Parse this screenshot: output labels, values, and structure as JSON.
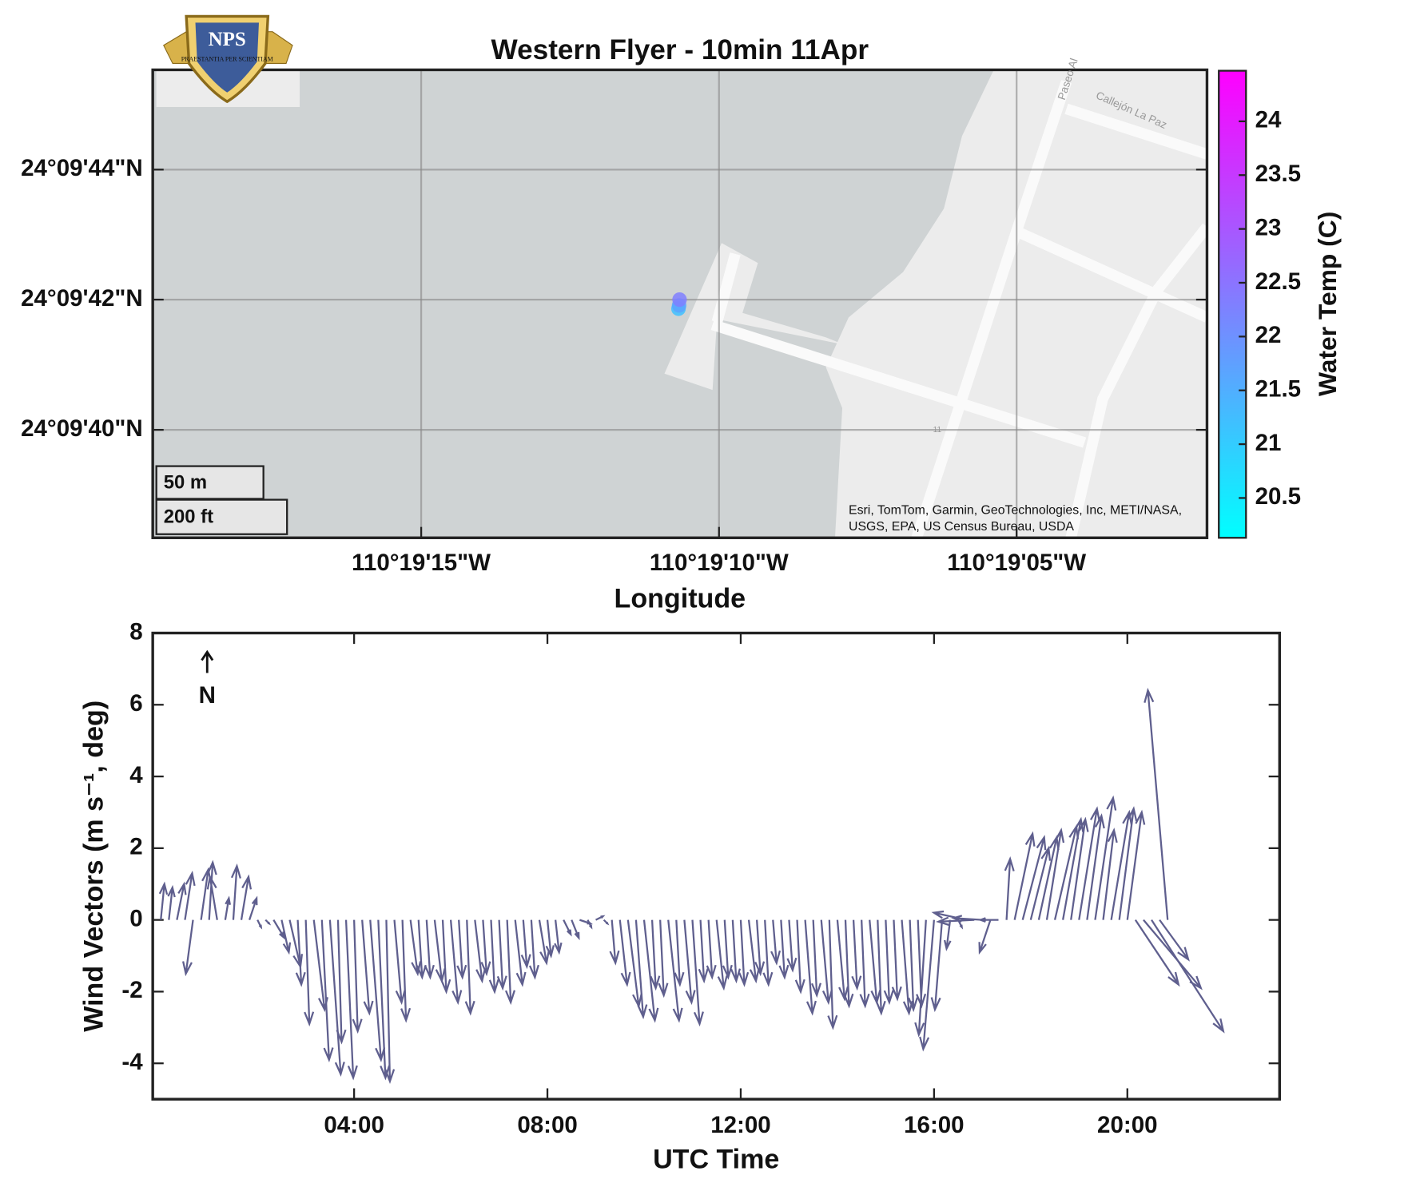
{
  "chart_data": [
    {
      "type": "map",
      "title": "Western Flyer - 10min 11Apr",
      "xlabel": "Longitude",
      "xlim": [
        -110.322085,
        -110.317168
      ],
      "ylim": [
        24.16065,
        24.162648
      ],
      "xticks": [
        {
          "value": -110.320833,
          "label": "110°19'15\"W"
        },
        {
          "value": -110.319444,
          "label": "110°19'10\"W"
        },
        {
          "value": -110.318056,
          "label": "110°19'05\"W"
        }
      ],
      "yticks": [
        {
          "value": 24.161111,
          "label": "24°09'40\"N"
        },
        {
          "value": 24.161667,
          "label": "24°09'42\"N"
        },
        {
          "value": 24.162222,
          "label": "24°09'44\"N"
        }
      ],
      "grid": true,
      "x": [
        -110.319633,
        -110.31963,
        -110.319628
      ],
      "y": [
        24.161628,
        24.161642,
        24.161667
      ],
      "values": [
        21.2,
        21.7,
        22.3
      ],
      "colorbar": {
        "label": "Water Temp (C)",
        "lim": [
          20.13,
          24.47
        ],
        "ticks": [
          20.5,
          21,
          21.5,
          22,
          22.5,
          23,
          23.5,
          24
        ],
        "colors": [
          "#00ffff",
          "#ff00ff"
        ]
      },
      "scale_labels": [
        "50 m",
        "200 ft"
      ],
      "attribution": [
        "Esri, TomTom, Garmin, GeoTechnologies, Inc, METI/NASA,",
        "USGS, EPA, US Census Bureau, USDA"
      ],
      "street_labels": [
        "Paseo Al",
        "Callejón La Paz",
        "11"
      ],
      "logo": {
        "text": "NPS",
        "motto": "PRAESTANTIA PER SCIENTIAM"
      }
    },
    {
      "type": "quiver",
      "xlabel": "UTC Time",
      "ylabel": "Wind Vectors (m s⁻¹, deg)",
      "north_label": "N",
      "color": "#5f5f8e",
      "xlim": [
        -10,
        1389
      ],
      "ylim": [
        -5,
        8
      ],
      "xticks": [
        {
          "value": 240,
          "label": "04:00"
        },
        {
          "value": 480,
          "label": "08:00"
        },
        {
          "value": 720,
          "label": "12:00"
        },
        {
          "value": 960,
          "label": "16:00"
        },
        {
          "value": 1200,
          "label": "20:00"
        }
      ],
      "yticks": [
        -4,
        -2,
        0,
        2,
        4,
        6,
        8
      ],
      "x": [
        0,
        10,
        20,
        30,
        40,
        50,
        60,
        70,
        80,
        90,
        100,
        110,
        120,
        130,
        140,
        150,
        160,
        170,
        180,
        190,
        200,
        210,
        220,
        230,
        240,
        250,
        260,
        270,
        280,
        290,
        300,
        310,
        320,
        330,
        340,
        350,
        360,
        370,
        380,
        390,
        400,
        410,
        420,
        430,
        440,
        450,
        460,
        470,
        480,
        490,
        500,
        510,
        520,
        530,
        540,
        550,
        560,
        570,
        580,
        590,
        600,
        610,
        620,
        630,
        640,
        650,
        660,
        670,
        680,
        690,
        700,
        710,
        720,
        730,
        740,
        750,
        760,
        770,
        780,
        790,
        800,
        810,
        820,
        830,
        840,
        850,
        860,
        870,
        880,
        890,
        900,
        910,
        920,
        930,
        940,
        950,
        960,
        970,
        980,
        990,
        1000,
        1010,
        1020,
        1030,
        1040,
        1050,
        1060,
        1070,
        1080,
        1090,
        1100,
        1110,
        1120,
        1130,
        1140,
        1150,
        1160,
        1170,
        1180,
        1190,
        1200,
        1210,
        1220,
        1230,
        1240,
        1250
      ],
      "u": [
        0.1,
        0.1,
        0.2,
        0.2,
        -0.2,
        0.2,
        0.1,
        -0.2,
        0.1,
        0.1,
        0.2,
        0.2,
        0.1,
        0.1,
        0.3,
        0.2,
        0.3,
        0.1,
        0.1,
        0.3,
        0.2,
        0.3,
        0.1,
        0.2,
        0.1,
        0.2,
        0.3,
        0.2,
        0.1,
        0.2,
        0.1,
        0.2,
        0.1,
        0.1,
        0.2,
        0.1,
        0.2,
        0.1,
        0.1,
        0.2,
        0.1,
        0.1,
        0.1,
        0.1,
        0.2,
        0.1,
        0.1,
        0.2,
        0.1,
        0.1,
        0.2,
        0.2,
        0.3,
        0.1,
        0.2,
        0.1,
        0.1,
        0.2,
        0.3,
        0.2,
        0.3,
        0.1,
        0.1,
        0.3,
        0.1,
        0.2,
        0.2,
        0.1,
        0.1,
        0.2,
        0.1,
        0.1,
        0.1,
        0.2,
        0.1,
        0.1,
        0.1,
        0.1,
        0.1,
        0.1,
        0.2,
        0.1,
        0.2,
        0.1,
        0.2,
        0.1,
        0.1,
        0.1,
        0.2,
        0.1,
        0.1,
        0.1,
        0.2,
        0.1,
        0.1,
        -0.2,
        -0.3,
        -0.2,
        -0.1,
        0.1,
        -0.9,
        -1.0,
        -0.8,
        -0.3,
        -0.5,
        0.1,
        0.5,
        0.6,
        0.5,
        0.5,
        0.4,
        0.6,
        0.5,
        0.4,
        0.5,
        0.4,
        0.5,
        0.3,
        0.5,
        0.4,
        0.4,
        1.2,
        1.6,
        2.0,
        0.8,
        -0.55
      ],
      "v": [
        1.0,
        0.9,
        1.0,
        1.3,
        -1.5,
        1.4,
        1.6,
        1.2,
        0.6,
        1.5,
        1.2,
        0.6,
        -0.2,
        -0.1,
        -0.5,
        -0.9,
        -1.3,
        -1.8,
        -2.9,
        -2.5,
        -3.9,
        -4.3,
        -3.4,
        -4.4,
        -3.1,
        -2.6,
        -3.9,
        -4.4,
        -4.5,
        -2.3,
        -2.8,
        -1.5,
        -1.6,
        -1.6,
        -1.7,
        -2.0,
        -2.3,
        -1.6,
        -2.6,
        -1.7,
        -1.5,
        -2.0,
        -1.9,
        -2.3,
        -1.8,
        -1.3,
        -1.6,
        -1.2,
        -1.0,
        -0.9,
        -0.4,
        -0.5,
        -0.1,
        -0.2,
        0.1,
        -0.1,
        -1.2,
        -1.8,
        -2.4,
        -2.7,
        -2.8,
        -1.9,
        -2.1,
        -2.8,
        -1.8,
        -2.3,
        -2.9,
        -1.7,
        -1.6,
        -1.9,
        -1.6,
        -1.7,
        -1.8,
        -1.7,
        -1.5,
        -1.8,
        -1.2,
        -1.6,
        -1.4,
        -2.0,
        -2.6,
        -2.1,
        -2.3,
        -3.0,
        -2.2,
        -2.4,
        -1.9,
        -2.4,
        -2.3,
        -2.6,
        -2.3,
        -2.2,
        -2.6,
        -2.5,
        -2.4,
        -3.2,
        -3.6,
        -2.5,
        -0.8,
        -0.2,
        0.2,
        -0.05,
        0.05,
        -0.9,
        0.0,
        1.7,
        2.4,
        2.3,
        2.0,
        2.3,
        2.5,
        2.6,
        2.8,
        2.8,
        3.1,
        2.9,
        3.4,
        2.5,
        3.0,
        3.1,
        3.0,
        -1.8,
        -1.9,
        -3.1,
        -1.1,
        6.4
      ]
    }
  ]
}
